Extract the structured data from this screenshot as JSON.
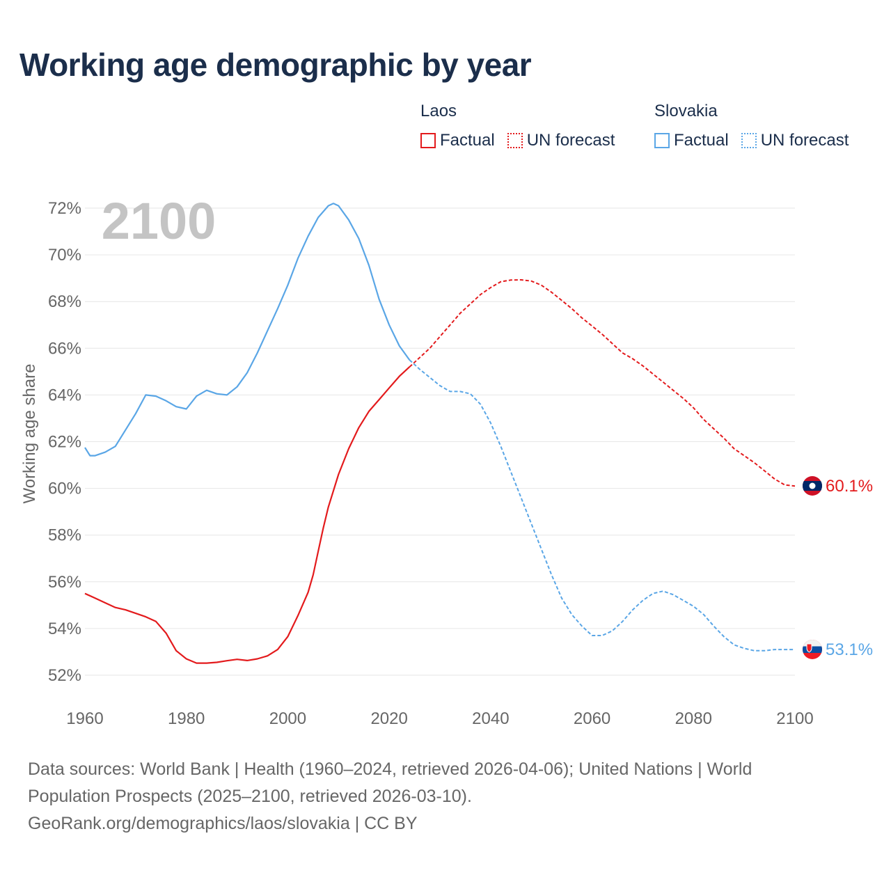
{
  "title": "Working age demographic by year",
  "legend": {
    "groups": [
      {
        "name": "Laos",
        "factual": "Factual",
        "forecast": "UN forecast",
        "color": "#e31a1c"
      },
      {
        "name": "Slovakia",
        "factual": "Factual",
        "forecast": "UN forecast",
        "color": "#5aa6e6"
      }
    ]
  },
  "chart_data": {
    "type": "line",
    "title": "Working age demographic by year",
    "xlabel": "",
    "ylabel": "Working age share",
    "xlim": [
      1960,
      2100
    ],
    "ylim": [
      52,
      72
    ],
    "x_ticks": [
      1960,
      1980,
      2000,
      2020,
      2040,
      2060,
      2080,
      2100
    ],
    "x_tick_labels": [
      "1960",
      "1980",
      "2000",
      "2020",
      "2040",
      "2060",
      "2080",
      "2100"
    ],
    "y_ticks": [
      52,
      54,
      56,
      58,
      60,
      62,
      64,
      66,
      68,
      70,
      72
    ],
    "y_tick_labels": [
      "52%",
      "54%",
      "56%",
      "58%",
      "60%",
      "62%",
      "64%",
      "66%",
      "68%",
      "70%",
      "72%"
    ],
    "year_watermark": "2100",
    "grid": true,
    "factual_end_year": 2024,
    "series": [
      {
        "name": "Laos",
        "color": "#e31a1c",
        "end_label": "60.1%",
        "x": [
          1960,
          1962,
          1964,
          1966,
          1968,
          1970,
          1972,
          1974,
          1976,
          1978,
          1980,
          1982,
          1984,
          1986,
          1988,
          1990,
          1992,
          1994,
          1996,
          1998,
          2000,
          2002,
          2004,
          2005,
          2006,
          2007,
          2008,
          2010,
          2012,
          2014,
          2016,
          2018,
          2020,
          2022,
          2024,
          2026,
          2028,
          2030,
          2032,
          2034,
          2036,
          2038,
          2040,
          2042,
          2044,
          2046,
          2048,
          2050,
          2052,
          2054,
          2056,
          2058,
          2060,
          2062,
          2064,
          2066,
          2068,
          2070,
          2072,
          2074,
          2076,
          2078,
          2080,
          2082,
          2084,
          2086,
          2088,
          2090,
          2092,
          2094,
          2096,
          2098,
          2100
        ],
        "values": [
          55.5,
          55.3,
          55.1,
          54.9,
          54.8,
          54.65,
          54.5,
          54.3,
          53.8,
          53.05,
          52.7,
          52.52,
          52.52,
          52.55,
          52.62,
          52.68,
          52.63,
          52.7,
          52.83,
          53.1,
          53.65,
          54.55,
          55.55,
          56.3,
          57.3,
          58.3,
          59.2,
          60.6,
          61.7,
          62.6,
          63.3,
          63.8,
          64.3,
          64.8,
          65.2,
          65.6,
          66.0,
          66.5,
          67.0,
          67.5,
          67.9,
          68.3,
          68.6,
          68.85,
          68.92,
          68.93,
          68.88,
          68.7,
          68.4,
          68.05,
          67.7,
          67.3,
          66.95,
          66.6,
          66.2,
          65.8,
          65.55,
          65.25,
          64.9,
          64.55,
          64.2,
          63.85,
          63.45,
          62.95,
          62.55,
          62.15,
          61.7,
          61.4,
          61.1,
          60.75,
          60.4,
          60.15,
          60.1
        ]
      },
      {
        "name": "Slovakia",
        "color": "#5aa6e6",
        "end_label": "53.1%",
        "x": [
          1960,
          1961,
          1962,
          1964,
          1966,
          1968,
          1970,
          1972,
          1974,
          1976,
          1978,
          1980,
          1982,
          1984,
          1986,
          1988,
          1990,
          1992,
          1994,
          1996,
          1998,
          2000,
          2002,
          2004,
          2006,
          2008,
          2009,
          2010,
          2012,
          2014,
          2016,
          2018,
          2020,
          2022,
          2024,
          2026,
          2028,
          2030,
          2032,
          2034,
          2036,
          2038,
          2040,
          2042,
          2044,
          2046,
          2048,
          2050,
          2052,
          2054,
          2056,
          2058,
          2060,
          2062,
          2064,
          2066,
          2068,
          2070,
          2072,
          2074,
          2076,
          2078,
          2080,
          2082,
          2084,
          2086,
          2088,
          2090,
          2092,
          2094,
          2096,
          2098,
          2100
        ],
        "values": [
          61.75,
          61.4,
          61.4,
          61.55,
          61.8,
          62.5,
          63.2,
          64.0,
          63.95,
          63.75,
          63.5,
          63.4,
          63.95,
          64.2,
          64.05,
          64.0,
          64.35,
          64.95,
          65.8,
          66.75,
          67.7,
          68.7,
          69.85,
          70.8,
          71.6,
          72.1,
          72.2,
          72.1,
          71.5,
          70.7,
          69.55,
          68.1,
          67.0,
          66.1,
          65.5,
          65.1,
          64.75,
          64.4,
          64.15,
          64.15,
          64.05,
          63.6,
          62.8,
          61.8,
          60.7,
          59.6,
          58.5,
          57.4,
          56.3,
          55.3,
          54.6,
          54.1,
          53.7,
          53.7,
          53.9,
          54.3,
          54.8,
          55.2,
          55.5,
          55.6,
          55.45,
          55.2,
          54.95,
          54.6,
          54.1,
          53.65,
          53.3,
          53.15,
          53.05,
          53.05,
          53.1,
          53.1,
          53.1
        ]
      }
    ]
  },
  "footer": {
    "line1": "Data sources: World Bank | Health (1960–2024, retrieved 2026-04-06); United Nations | World",
    "line2": "Population Prospects (2025–2100, retrieved 2026-03-10).",
    "line3": "GeoRank.org/demographics/laos/slovakia | CC BY"
  }
}
